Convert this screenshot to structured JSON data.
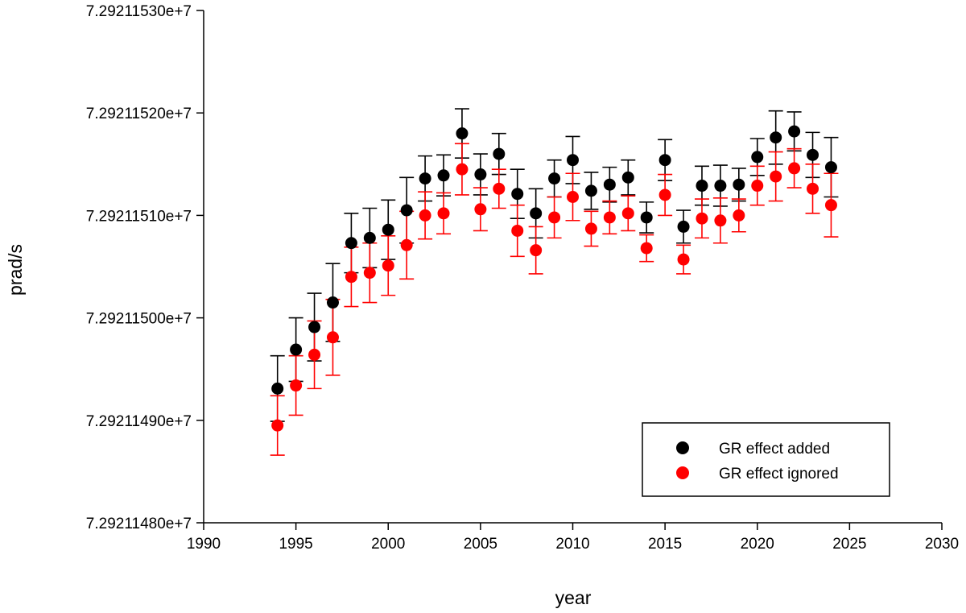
{
  "chart_data": {
    "type": "scatter",
    "title": "",
    "xlabel": "year",
    "ylabel": "prad/s",
    "xlim": [
      1990,
      2030
    ],
    "ylim": [
      72921148.0,
      72921153.0
    ],
    "xticks": [
      1990,
      1995,
      2000,
      2005,
      2010,
      2015,
      2020,
      2025,
      2030
    ],
    "xtick_labels": [
      "1990",
      "1995",
      "2000",
      "2005",
      "2010",
      "2015",
      "2020",
      "2025",
      "2030"
    ],
    "yticks": [
      72921148.0,
      72921149.0,
      72921150.0,
      72921151.0,
      72921152.0,
      72921153.0
    ],
    "ytick_labels": [
      "7.29211480e+7",
      "7.29211490e+7",
      "7.29211500e+7",
      "7.29211510e+7",
      "7.29211520e+7",
      "7.29211530e+7"
    ],
    "grid": false,
    "legend_position": "bottom-right",
    "x": [
      1994,
      1995,
      1996,
      1997,
      1998,
      1999,
      2000,
      2001,
      2002,
      2003,
      2004,
      2005,
      2006,
      2007,
      2008,
      2009,
      2010,
      2011,
      2012,
      2013,
      2014,
      2015,
      2016,
      2017,
      2018,
      2019,
      2020,
      2021,
      2022,
      2023,
      2024
    ],
    "series": [
      {
        "name": "GR effect added",
        "color": "#000000",
        "values": [
          72921149.31,
          72921149.69,
          72921149.91,
          72921150.15,
          72921150.73,
          72921150.78,
          72921150.86,
          72921151.05,
          72921151.36,
          72921151.39,
          72921151.8,
          72921151.4,
          72921151.6,
          72921151.21,
          72921151.02,
          72921151.36,
          72921151.54,
          72921151.24,
          72921151.3,
          72921151.37,
          72921150.98,
          72921151.54,
          72921150.89,
          72921151.29,
          72921151.29,
          72921151.3,
          72921151.57,
          72921151.76,
          72921151.82,
          72921151.59,
          72921151.47
        ],
        "error": [
          0.32,
          0.31,
          0.33,
          0.38,
          0.29,
          0.29,
          0.29,
          0.32,
          0.22,
          0.2,
          0.24,
          0.2,
          0.2,
          0.24,
          0.24,
          0.18,
          0.23,
          0.18,
          0.17,
          0.17,
          0.15,
          0.2,
          0.16,
          0.19,
          0.2,
          0.16,
          0.18,
          0.26,
          0.19,
          0.22,
          0.29
        ]
      },
      {
        "name": "GR effect ignored",
        "color": "#ff0000",
        "values": [
          72921148.95,
          72921149.34,
          72921149.64,
          72921149.81,
          72921150.4,
          72921150.44,
          72921150.51,
          72921150.71,
          72921151.0,
          72921151.02,
          72921151.45,
          72921151.06,
          72921151.26,
          72921150.85,
          72921150.66,
          72921150.98,
          72921151.18,
          72921150.87,
          72921150.98,
          72921151.02,
          72921150.68,
          72921151.2,
          72921150.57,
          72921150.97,
          72921150.95,
          72921151.0,
          72921151.29,
          72921151.38,
          72921151.46,
          72921151.26,
          72921151.1
        ],
        "error": [
          0.29,
          0.29,
          0.33,
          0.37,
          0.29,
          0.29,
          0.29,
          0.33,
          0.23,
          0.2,
          0.25,
          0.21,
          0.19,
          0.25,
          0.23,
          0.2,
          0.23,
          0.17,
          0.16,
          0.17,
          0.13,
          0.2,
          0.14,
          0.19,
          0.22,
          0.16,
          0.19,
          0.24,
          0.19,
          0.24,
          0.31
        ]
      }
    ]
  }
}
